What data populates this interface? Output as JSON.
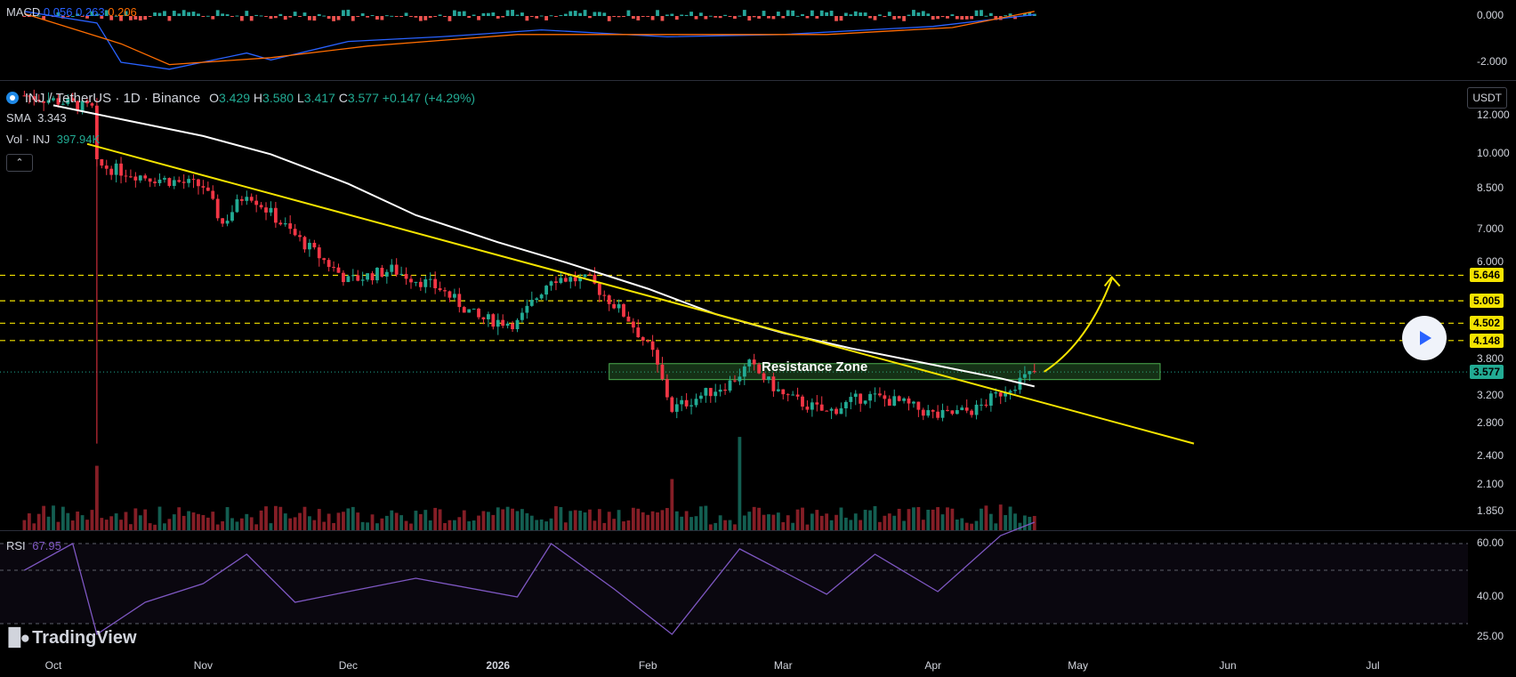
{
  "chart_data": [
    {
      "type": "candlestick",
      "symbol": "INJ / TetherUS · 1D · Binance",
      "ohlc": {
        "o_label": "O",
        "o": "3.429",
        "h_label": "H",
        "h": "3.580",
        "l_label": "L",
        "l": "3.417",
        "c_label": "C",
        "c": "3.577",
        "change": "+0.147 (+4.29%)"
      },
      "sma_label": "SMA",
      "sma_value": "3.343",
      "vol_label": "Vol · INJ",
      "vol_value": "397.94K",
      "currency": "USDT",
      "y_ticks": [
        "12.000",
        "10.000",
        "8.500",
        "7.000",
        "6.000",
        "3.800",
        "3.200",
        "2.800",
        "2.400",
        "2.100",
        "1.850"
      ],
      "y_ticks_values": [
        12.0,
        10.0,
        8.5,
        7.0,
        6.0,
        3.8,
        3.2,
        2.8,
        2.4,
        2.1,
        1.85
      ],
      "scale": "log",
      "x_ticks": [
        "Oct",
        "Nov",
        "Dec",
        "2026",
        "Feb",
        "Mar",
        "Apr",
        "May",
        "Jun",
        "Jul"
      ],
      "horizontal_levels": [
        {
          "value": "5.646",
          "color": "#f5e400"
        },
        {
          "value": "5.005",
          "color": "#f5e400"
        },
        {
          "value": "4.502",
          "color": "#f5e400"
        },
        {
          "value": "4.148",
          "color": "#f5e400"
        }
      ],
      "last_price": {
        "value": "3.577",
        "color": "#22ab94"
      },
      "resistance_zone": {
        "label": "Resistance Zone",
        "low": 3.45,
        "high": 3.72
      },
      "trendline": {
        "color": "#f5e400"
      },
      "sma_color": "#ffffff",
      "up_color": "#22ab94",
      "down_color": "#f23645",
      "sma_path": [
        {
          "date": "2025-10-01",
          "value": 12.6
        },
        {
          "date": "2025-10-15",
          "value": 11.8
        },
        {
          "date": "2025-11-01",
          "value": 10.9
        },
        {
          "date": "2025-11-15",
          "value": 10.0
        },
        {
          "date": "2025-12-01",
          "value": 8.7
        },
        {
          "date": "2025-12-15",
          "value": 7.5
        },
        {
          "date": "2026-01-01",
          "value": 6.6
        },
        {
          "date": "2026-01-15",
          "value": 6.0
        },
        {
          "date": "2026-02-01",
          "value": 5.3
        },
        {
          "date": "2026-02-15",
          "value": 4.7
        },
        {
          "date": "2026-03-01",
          "value": 4.3
        },
        {
          "date": "2026-03-15",
          "value": 4.0
        },
        {
          "date": "2026-04-01",
          "value": 3.7
        },
        {
          "date": "2026-04-15",
          "value": 3.47
        },
        {
          "date": "2026-04-22",
          "value": 3.34
        }
      ],
      "trendline_points": [
        {
          "date": "2025-10-08",
          "value": 10.5
        },
        {
          "date": "2026-05-25",
          "value": 2.55
        }
      ],
      "projection_points": [
        {
          "date": "2026-04-24",
          "value": 3.58
        },
        {
          "date": "2026-05-03",
          "value": 4.1
        },
        {
          "date": "2026-05-08",
          "value": 5.55
        }
      ],
      "price_path": [
        {
          "date": "2025-09-25",
          "value": 13.2
        },
        {
          "date": "2025-10-03",
          "value": 12.8
        },
        {
          "date": "2025-10-09",
          "value": 12.4
        },
        {
          "date": "2025-10-10",
          "value": 9.5
        },
        {
          "date": "2025-10-20",
          "value": 9.0
        },
        {
          "date": "2025-11-01",
          "value": 8.6
        },
        {
          "date": "2025-11-05",
          "value": 7.2
        },
        {
          "date": "2025-11-10",
          "value": 8.4
        },
        {
          "date": "2025-11-20",
          "value": 6.8
        },
        {
          "date": "2025-12-01",
          "value": 5.5
        },
        {
          "date": "2025-12-10",
          "value": 5.8
        },
        {
          "date": "2025-12-20",
          "value": 5.3
        },
        {
          "date": "2025-12-28",
          "value": 4.6
        },
        {
          "date": "2026-01-05",
          "value": 4.5
        },
        {
          "date": "2026-01-12",
          "value": 5.6
        },
        {
          "date": "2026-01-20",
          "value": 5.5
        },
        {
          "date": "2026-01-28",
          "value": 4.6
        },
        {
          "date": "2026-02-02",
          "value": 3.9
        },
        {
          "date": "2026-02-06",
          "value": 3.0
        },
        {
          "date": "2026-02-12",
          "value": 3.2
        },
        {
          "date": "2026-02-18",
          "value": 3.4
        },
        {
          "date": "2026-02-22",
          "value": 3.7
        },
        {
          "date": "2026-03-01",
          "value": 3.2
        },
        {
          "date": "2026-03-10",
          "value": 2.95
        },
        {
          "date": "2026-03-18",
          "value": 3.2
        },
        {
          "date": "2026-03-25",
          "value": 3.1
        },
        {
          "date": "2026-04-02",
          "value": 2.9
        },
        {
          "date": "2026-04-10",
          "value": 3.0
        },
        {
          "date": "2026-04-16",
          "value": 3.3
        },
        {
          "date": "2026-04-22",
          "value": 3.577
        }
      ]
    },
    {
      "type": "line",
      "label": "MACD",
      "values": [
        "0.056",
        "0.263",
        "0.206"
      ],
      "y_ticks": [
        "0.000",
        "-2.000"
      ],
      "y_ticks_values": [
        0,
        -2
      ],
      "macd_color": "#2962ff",
      "signal_color": "#ff6d00",
      "macd_path": [
        {
          "date": "2025-09-25",
          "value": 0.2
        },
        {
          "date": "2025-10-10",
          "value": -0.3
        },
        {
          "date": "2025-10-15",
          "value": -2.0
        },
        {
          "date": "2025-10-25",
          "value": -2.3
        },
        {
          "date": "2025-11-10",
          "value": -1.6
        },
        {
          "date": "2025-11-15",
          "value": -1.9
        },
        {
          "date": "2025-12-01",
          "value": -1.1
        },
        {
          "date": "2025-12-20",
          "value": -0.9
        },
        {
          "date": "2026-01-10",
          "value": -0.6
        },
        {
          "date": "2026-02-05",
          "value": -0.9
        },
        {
          "date": "2026-03-01",
          "value": -0.8
        },
        {
          "date": "2026-04-01",
          "value": -0.45
        },
        {
          "date": "2026-04-22",
          "value": 0.06
        }
      ],
      "signal_path": [
        {
          "date": "2025-09-25",
          "value": 0.1
        },
        {
          "date": "2025-10-15",
          "value": -1.2
        },
        {
          "date": "2025-10-25",
          "value": -2.1
        },
        {
          "date": "2025-11-15",
          "value": -1.8
        },
        {
          "date": "2025-12-05",
          "value": -1.3
        },
        {
          "date": "2026-01-05",
          "value": -0.8
        },
        {
          "date": "2026-02-10",
          "value": -0.8
        },
        {
          "date": "2026-03-10",
          "value": -0.8
        },
        {
          "date": "2026-04-05",
          "value": -0.5
        },
        {
          "date": "2026-04-22",
          "value": 0.2
        }
      ]
    },
    {
      "type": "line",
      "label": "RSI",
      "value": "67.95",
      "y_ticks": [
        "60.00",
        "40.00",
        "25.00"
      ],
      "y_ticks_values": [
        60,
        40,
        25
      ],
      "color": "#7e57c2",
      "path": [
        {
          "date": "2025-09-25",
          "value": 50
        },
        {
          "date": "2025-10-05",
          "value": 60
        },
        {
          "date": "2025-10-10",
          "value": 26
        },
        {
          "date": "2025-10-20",
          "value": 38
        },
        {
          "date": "2025-11-01",
          "value": 45
        },
        {
          "date": "2025-11-10",
          "value": 56
        },
        {
          "date": "2025-11-20",
          "value": 38
        },
        {
          "date": "2025-12-01",
          "value": 42
        },
        {
          "date": "2025-12-15",
          "value": 47
        },
        {
          "date": "2026-01-05",
          "value": 40
        },
        {
          "date": "2026-01-12",
          "value": 60
        },
        {
          "date": "2026-01-25",
          "value": 43
        },
        {
          "date": "2026-02-06",
          "value": 26
        },
        {
          "date": "2026-02-20",
          "value": 58
        },
        {
          "date": "2026-03-10",
          "value": 41
        },
        {
          "date": "2026-03-20",
          "value": 56
        },
        {
          "date": "2026-04-02",
          "value": 42
        },
        {
          "date": "2026-04-15",
          "value": 63
        },
        {
          "date": "2026-04-22",
          "value": 68
        }
      ]
    }
  ],
  "branding": {
    "name": "TradingView"
  }
}
